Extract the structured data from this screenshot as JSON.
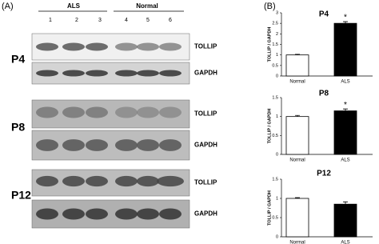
{
  "panel_labels": [
    "(A)",
    "(B)"
  ],
  "groups": [
    "ALS",
    "Normal"
  ],
  "lanes": [
    "1",
    "2",
    "3",
    "4",
    "5",
    "6"
  ],
  "blots": [
    {
      "label": "P4",
      "rows": [
        "TOLLIP",
        "GAPDH"
      ]
    },
    {
      "label": "P8",
      "rows": [
        "TOLLIP",
        "GAPDH"
      ]
    },
    {
      "label": "P12",
      "rows": [
        "TOLLIP",
        "GAPDH"
      ]
    }
  ],
  "chart_data": [
    {
      "type": "bar",
      "title": "P4",
      "y_label": "TOLLIP / GAPDH",
      "categories": [
        "Normal",
        "ALS"
      ],
      "values": [
        1,
        2.5
      ],
      "errors": [
        0.03,
        0.08
      ],
      "colors": [
        "#ffffff",
        "#000000"
      ],
      "annotations": [
        null,
        "*"
      ],
      "ylim": [
        0,
        3
      ],
      "yticks": [
        0,
        0.5,
        1,
        1.5,
        2,
        2.5,
        3
      ]
    },
    {
      "type": "bar",
      "title": "P8",
      "y_label": "TOLLIP / GAPDH",
      "categories": [
        "Normal",
        "ALS"
      ],
      "values": [
        1,
        1.15
      ],
      "errors": [
        0.03,
        0.05
      ],
      "colors": [
        "#ffffff",
        "#000000"
      ],
      "annotations": [
        null,
        "*"
      ],
      "ylim": [
        0,
        1.5
      ],
      "yticks": [
        0,
        0.5,
        1,
        1.5
      ]
    },
    {
      "type": "bar",
      "title": "P12",
      "y_label": "TOLLIP / GAPDH",
      "categories": [
        "Normal",
        "ALS"
      ],
      "values": [
        1,
        0.85
      ],
      "errors": [
        0.02,
        0.06
      ],
      "colors": [
        "#ffffff",
        "#000000"
      ],
      "annotations": [
        null,
        null
      ],
      "ylim": [
        0,
        1.5
      ],
      "yticks": [
        0,
        0.5,
        1,
        1.5
      ]
    }
  ]
}
